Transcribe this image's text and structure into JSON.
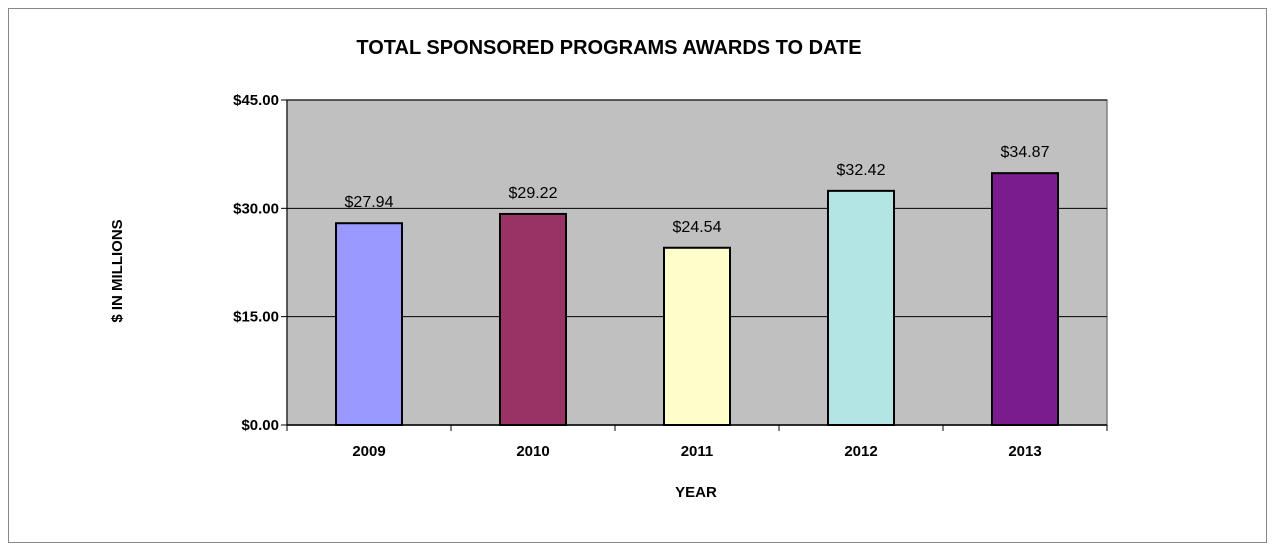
{
  "chart_data": {
    "type": "bar",
    "title": "TOTAL SPONSORED PROGRAMS AWARDS TO DATE",
    "xlabel": "YEAR",
    "ylabel": "$ IN MILLIONS",
    "categories": [
      "2009",
      "2010",
      "2011",
      "2012",
      "2013"
    ],
    "values": [
      27.94,
      29.22,
      24.54,
      32.42,
      34.87
    ],
    "data_labels": [
      "$27.94",
      "$29.22",
      "$24.54",
      "$32.42",
      "$34.87"
    ],
    "colors": [
      "#9999ff",
      "#993366",
      "#ffffcc",
      "#b3e5e5",
      "#7b1c8e"
    ],
    "ylim": [
      0,
      45
    ],
    "yticks": [
      0,
      15,
      30,
      45
    ],
    "ytick_labels": [
      "$0.00",
      "$15.00",
      "$30.00",
      "$45.00"
    ],
    "plot_background": "#c0c0c0",
    "grid": true,
    "legend": "none"
  }
}
